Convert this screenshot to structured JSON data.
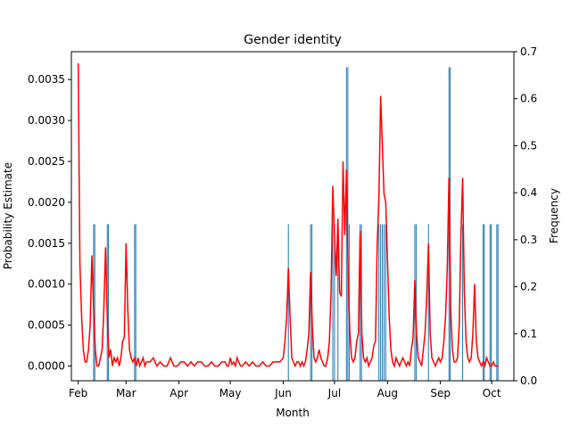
{
  "chart_data": {
    "type": "line",
    "title": "Gender identity",
    "xlabel": "Month",
    "ylabel": "Probability Estimate",
    "y2label": "Frequency",
    "x_ticks": [
      "Feb",
      "Mar",
      "Apr",
      "May",
      "Jun",
      "Jul",
      "Aug",
      "Sep",
      "Oct"
    ],
    "x_range_days": [
      -4,
      255
    ],
    "ylim": [
      -0.00018,
      0.00384
    ],
    "y_ticks": [
      "0.0000",
      "0.0005",
      "0.0010",
      "0.0015",
      "0.0020",
      "0.0025",
      "0.0030",
      "0.0035"
    ],
    "y2lim": [
      0.0,
      0.7
    ],
    "y2_ticks": [
      "0.0",
      "0.1",
      "0.2",
      "0.3",
      "0.4",
      "0.5",
      "0.6",
      "0.7"
    ],
    "line_color": "#ff0000",
    "bar_color": "#1f77b4",
    "series": [
      {
        "name": "Probability Estimate",
        "x": [
          0,
          1,
          2,
          3,
          4,
          5,
          6,
          7,
          8,
          9,
          10,
          11,
          12,
          13,
          14,
          15,
          16,
          17,
          18,
          19,
          20,
          21,
          22,
          23,
          24,
          25,
          26,
          27,
          28,
          29,
          30,
          31,
          32,
          33,
          34,
          35,
          36,
          37,
          38,
          39,
          40,
          42,
          44,
          46,
          48,
          50,
          52,
          54,
          56,
          58,
          60,
          62,
          64,
          66,
          68,
          70,
          72,
          74,
          76,
          78,
          80,
          82,
          84,
          86,
          87,
          88,
          89,
          90,
          91,
          92,
          93,
          94,
          95,
          96,
          98,
          100,
          102,
          104,
          106,
          108,
          110,
          104,
          106,
          108,
          110,
          112,
          114,
          116,
          118,
          120,
          122,
          124,
          126,
          127,
          128,
          129,
          130,
          131,
          132,
          133,
          134,
          135,
          136,
          137,
          138,
          139,
          140,
          141,
          142,
          143,
          144,
          145,
          146,
          147,
          148,
          149,
          150,
          151,
          152,
          153,
          154,
          155,
          156,
          157,
          158,
          159,
          160,
          161,
          162,
          163,
          164,
          165,
          166,
          167,
          168,
          169,
          170,
          171,
          172,
          173,
          174,
          175,
          176,
          177,
          178,
          179,
          180,
          181,
          182,
          183,
          184,
          185,
          186,
          187,
          188,
          189,
          190,
          191,
          192,
          193,
          194,
          195,
          196,
          197,
          198,
          199,
          200,
          201,
          202,
          203,
          204,
          205,
          206,
          207,
          208,
          209,
          210,
          211,
          212,
          213,
          214,
          215,
          216,
          217,
          218,
          219,
          220,
          221,
          222,
          223,
          224,
          225,
          226,
          227,
          228,
          229,
          230,
          231,
          232,
          233,
          234,
          235,
          236,
          237,
          238,
          239,
          240,
          241,
          242,
          243,
          244,
          245,
          246
        ],
        "values_note": "see script"
      }
    ],
    "line_points": [
      [
        0,
        0.0037
      ],
      [
        1,
        0.00125
      ],
      [
        2,
        0.0006
      ],
      [
        3,
        0.0002
      ],
      [
        4,
        5e-05
      ],
      [
        5,
        5e-05
      ],
      [
        6,
        0.0002
      ],
      [
        7,
        0.0005
      ],
      [
        8,
        0.00135
      ],
      [
        9,
        0.0007
      ],
      [
        10,
        0.0002
      ],
      [
        11,
        0.0
      ],
      [
        12,
        0.0
      ],
      [
        13,
        0.0001
      ],
      [
        14,
        0.0002
      ],
      [
        15,
        0.0007
      ],
      [
        16,
        0.00145
      ],
      [
        17,
        0.0006
      ],
      [
        18,
        0.0001
      ],
      [
        19,
        0.0002
      ],
      [
        20,
        0.0
      ],
      [
        21,
        0.0001
      ],
      [
        22,
        5e-05
      ],
      [
        23,
        0.0001
      ],
      [
        24,
        0.0
      ],
      [
        25,
        0.0001
      ],
      [
        26,
        0.0003
      ],
      [
        27,
        0.00035
      ],
      [
        28,
        0.0015
      ],
      [
        29,
        0.0007
      ],
      [
        30,
        0.0002
      ],
      [
        31,
        0.0001
      ],
      [
        32,
        5e-05
      ],
      [
        33,
        0.0001
      ],
      [
        34,
        0.0
      ],
      [
        35,
        0.0001
      ],
      [
        36,
        0.0
      ],
      [
        37,
        5e-05
      ],
      [
        38,
        0.0001
      ],
      [
        39,
        0.0
      ],
      [
        40,
        5e-05
      ],
      [
        42,
        5e-05
      ],
      [
        44,
        0.0001
      ],
      [
        46,
        0.0
      ],
      [
        48,
        5e-05
      ],
      [
        50,
        0.0
      ],
      [
        52,
        0.0
      ],
      [
        54,
        0.0001
      ],
      [
        56,
        0.0
      ],
      [
        58,
        0.0
      ],
      [
        60,
        5e-05
      ],
      [
        62,
        5e-05
      ],
      [
        64,
        0.0
      ],
      [
        66,
        5e-05
      ],
      [
        68,
        0.0
      ],
      [
        70,
        5e-05
      ],
      [
        72,
        5e-05
      ],
      [
        74,
        0.0
      ],
      [
        76,
        0.0
      ],
      [
        78,
        5e-05
      ],
      [
        80,
        0.0
      ],
      [
        82,
        0.0
      ],
      [
        84,
        5e-05
      ],
      [
        86,
        5e-05
      ],
      [
        87,
        0.0
      ],
      [
        88,
        0.0
      ],
      [
        89,
        0.0001
      ],
      [
        90,
        2e-05
      ],
      [
        91,
        5e-05
      ],
      [
        92,
        0.0
      ],
      [
        93,
        0.0001
      ],
      [
        94,
        5e-05
      ],
      [
        95,
        0.0
      ],
      [
        96,
        0.0
      ],
      [
        98,
        5e-05
      ],
      [
        100,
        0.0
      ],
      [
        102,
        5e-05
      ],
      [
        104,
        0.0
      ],
      [
        106,
        0.0
      ],
      [
        108,
        5e-05
      ],
      [
        110,
        0.0
      ],
      [
        112,
        0.0
      ],
      [
        114,
        5e-05
      ],
      [
        116,
        5e-05
      ],
      [
        118,
        5e-05
      ],
      [
        120,
        0.0001
      ],
      [
        121,
        0.0003
      ],
      [
        122,
        0.0006
      ],
      [
        123,
        0.0012
      ],
      [
        124,
        0.0006
      ],
      [
        125,
        0.0001
      ],
      [
        126,
        5e-05
      ],
      [
        127,
        0.0
      ],
      [
        128,
        5e-05
      ],
      [
        129,
        5e-05
      ],
      [
        130,
        0.0
      ],
      [
        131,
        5e-05
      ],
      [
        132,
        0.0
      ],
      [
        133,
        5e-05
      ],
      [
        134,
        0.0002
      ],
      [
        135,
        0.0004
      ],
      [
        136,
        0.00115
      ],
      [
        137,
        0.0005
      ],
      [
        138,
        0.0001
      ],
      [
        139,
        5e-05
      ],
      [
        140,
        0.0001
      ],
      [
        141,
        0.0002
      ],
      [
        142,
        0.0001
      ],
      [
        143,
        5e-05
      ],
      [
        144,
        0.0
      ],
      [
        145,
        0.0
      ],
      [
        146,
        0.0001
      ],
      [
        147,
        0.0003
      ],
      [
        148,
        0.0009
      ],
      [
        149,
        0.0022
      ],
      [
        150,
        0.0016
      ],
      [
        151,
        0.0011
      ],
      [
        152,
        0.0018
      ],
      [
        153,
        0.0009
      ],
      [
        154,
        0.00085
      ],
      [
        155,
        0.0025
      ],
      [
        156,
        0.0016
      ],
      [
        157,
        0.0024
      ],
      [
        158,
        0.0011
      ],
      [
        159,
        0.0004
      ],
      [
        160,
        0.0001
      ],
      [
        161,
        5e-05
      ],
      [
        162,
        0.0001
      ],
      [
        163,
        0.0003
      ],
      [
        164,
        0.0004
      ],
      [
        165,
        0.00165
      ],
      [
        166,
        0.0004
      ],
      [
        167,
        0.0001
      ],
      [
        168,
        5e-05
      ],
      [
        169,
        0.0001
      ],
      [
        170,
        0.0
      ],
      [
        171,
        5e-05
      ],
      [
        172,
        0.0001
      ],
      [
        173,
        0.00025
      ],
      [
        174,
        0.0003
      ],
      [
        175,
        0.0015
      ],
      [
        176,
        0.00205
      ],
      [
        177,
        0.0033
      ],
      [
        178,
        0.0027
      ],
      [
        179,
        0.0021
      ],
      [
        180,
        0.002
      ],
      [
        181,
        0.0013
      ],
      [
        182,
        0.0006
      ],
      [
        183,
        0.0002
      ],
      [
        184,
        5e-05
      ],
      [
        185,
        0.0
      ],
      [
        186,
        0.0001
      ],
      [
        187,
        5e-05
      ],
      [
        188,
        0.0
      ],
      [
        189,
        5e-05
      ],
      [
        190,
        0.0001
      ],
      [
        191,
        5e-05
      ],
      [
        192,
        0.0
      ],
      [
        193,
        5e-05
      ],
      [
        194,
        0.0
      ],
      [
        195,
        0.0002
      ],
      [
        196,
        0.00035
      ],
      [
        197,
        0.00105
      ],
      [
        198,
        0.0004
      ],
      [
        199,
        0.0001
      ],
      [
        200,
        5e-05
      ],
      [
        201,
        0.0
      ],
      [
        202,
        0.0002
      ],
      [
        203,
        0.0004
      ],
      [
        204,
        0.00085
      ],
      [
        205,
        0.0015
      ],
      [
        206,
        0.0004
      ],
      [
        207,
        0.0001
      ],
      [
        208,
        5e-05
      ],
      [
        209,
        0.0
      ],
      [
        210,
        5e-05
      ],
      [
        211,
        0.0001
      ],
      [
        212,
        5e-05
      ],
      [
        213,
        0.0001
      ],
      [
        214,
        0.0003
      ],
      [
        215,
        0.0006
      ],
      [
        216,
        0.0012
      ],
      [
        217,
        0.0023
      ],
      [
        218,
        0.0007
      ],
      [
        219,
        0.0002
      ],
      [
        220,
        5e-05
      ],
      [
        221,
        5e-05
      ],
      [
        222,
        0.0001
      ],
      [
        223,
        0.0005
      ],
      [
        224,
        0.0016
      ],
      [
        225,
        0.0023
      ],
      [
        226,
        0.0009
      ],
      [
        227,
        0.0003
      ],
      [
        228,
        0.0001
      ],
      [
        229,
        5e-05
      ],
      [
        230,
        0.0001
      ],
      [
        231,
        0.0004
      ],
      [
        232,
        0.001
      ],
      [
        233,
        0.0003
      ],
      [
        234,
        0.0001
      ],
      [
        235,
        5e-05
      ],
      [
        236,
        0.0
      ],
      [
        237,
        5e-05
      ],
      [
        238,
        0.0
      ],
      [
        239,
        0.0001
      ],
      [
        240,
        5e-05
      ],
      [
        241,
        0.0
      ],
      [
        242,
        0.0
      ],
      [
        243,
        5e-05
      ],
      [
        244,
        0.0
      ],
      [
        245,
        0.0
      ],
      [
        246,
        0.0
      ]
    ],
    "bars_note": "vertical frequency bars (right axis)",
    "bars": [
      [
        9,
        0.333
      ],
      [
        9.7,
        0.333
      ],
      [
        17,
        0.333
      ],
      [
        17.7,
        0.333
      ],
      [
        33,
        0.333
      ],
      [
        33.7,
        0.333
      ],
      [
        123,
        0.333
      ],
      [
        136,
        0.333
      ],
      [
        136.8,
        0.333
      ],
      [
        149,
        0.333
      ],
      [
        150,
        0.333
      ],
      [
        152,
        0.333
      ],
      [
        157,
        0.667
      ],
      [
        157.8,
        0.667
      ],
      [
        158.6,
        0.333
      ],
      [
        165,
        0.333
      ],
      [
        165.8,
        0.333
      ],
      [
        176,
        0.333
      ],
      [
        177,
        0.333
      ],
      [
        178,
        0.333
      ],
      [
        179,
        0.333
      ],
      [
        180,
        0.333
      ],
      [
        197,
        0.333
      ],
      [
        197.8,
        0.333
      ],
      [
        205,
        0.333
      ],
      [
        217,
        0.667
      ],
      [
        217.7,
        0.667
      ],
      [
        225,
        0.333
      ],
      [
        237,
        0.333
      ],
      [
        237.7,
        0.333
      ],
      [
        241,
        0.333
      ],
      [
        241.7,
        0.333
      ],
      [
        245,
        0.333
      ],
      [
        245.7,
        0.333
      ]
    ]
  }
}
